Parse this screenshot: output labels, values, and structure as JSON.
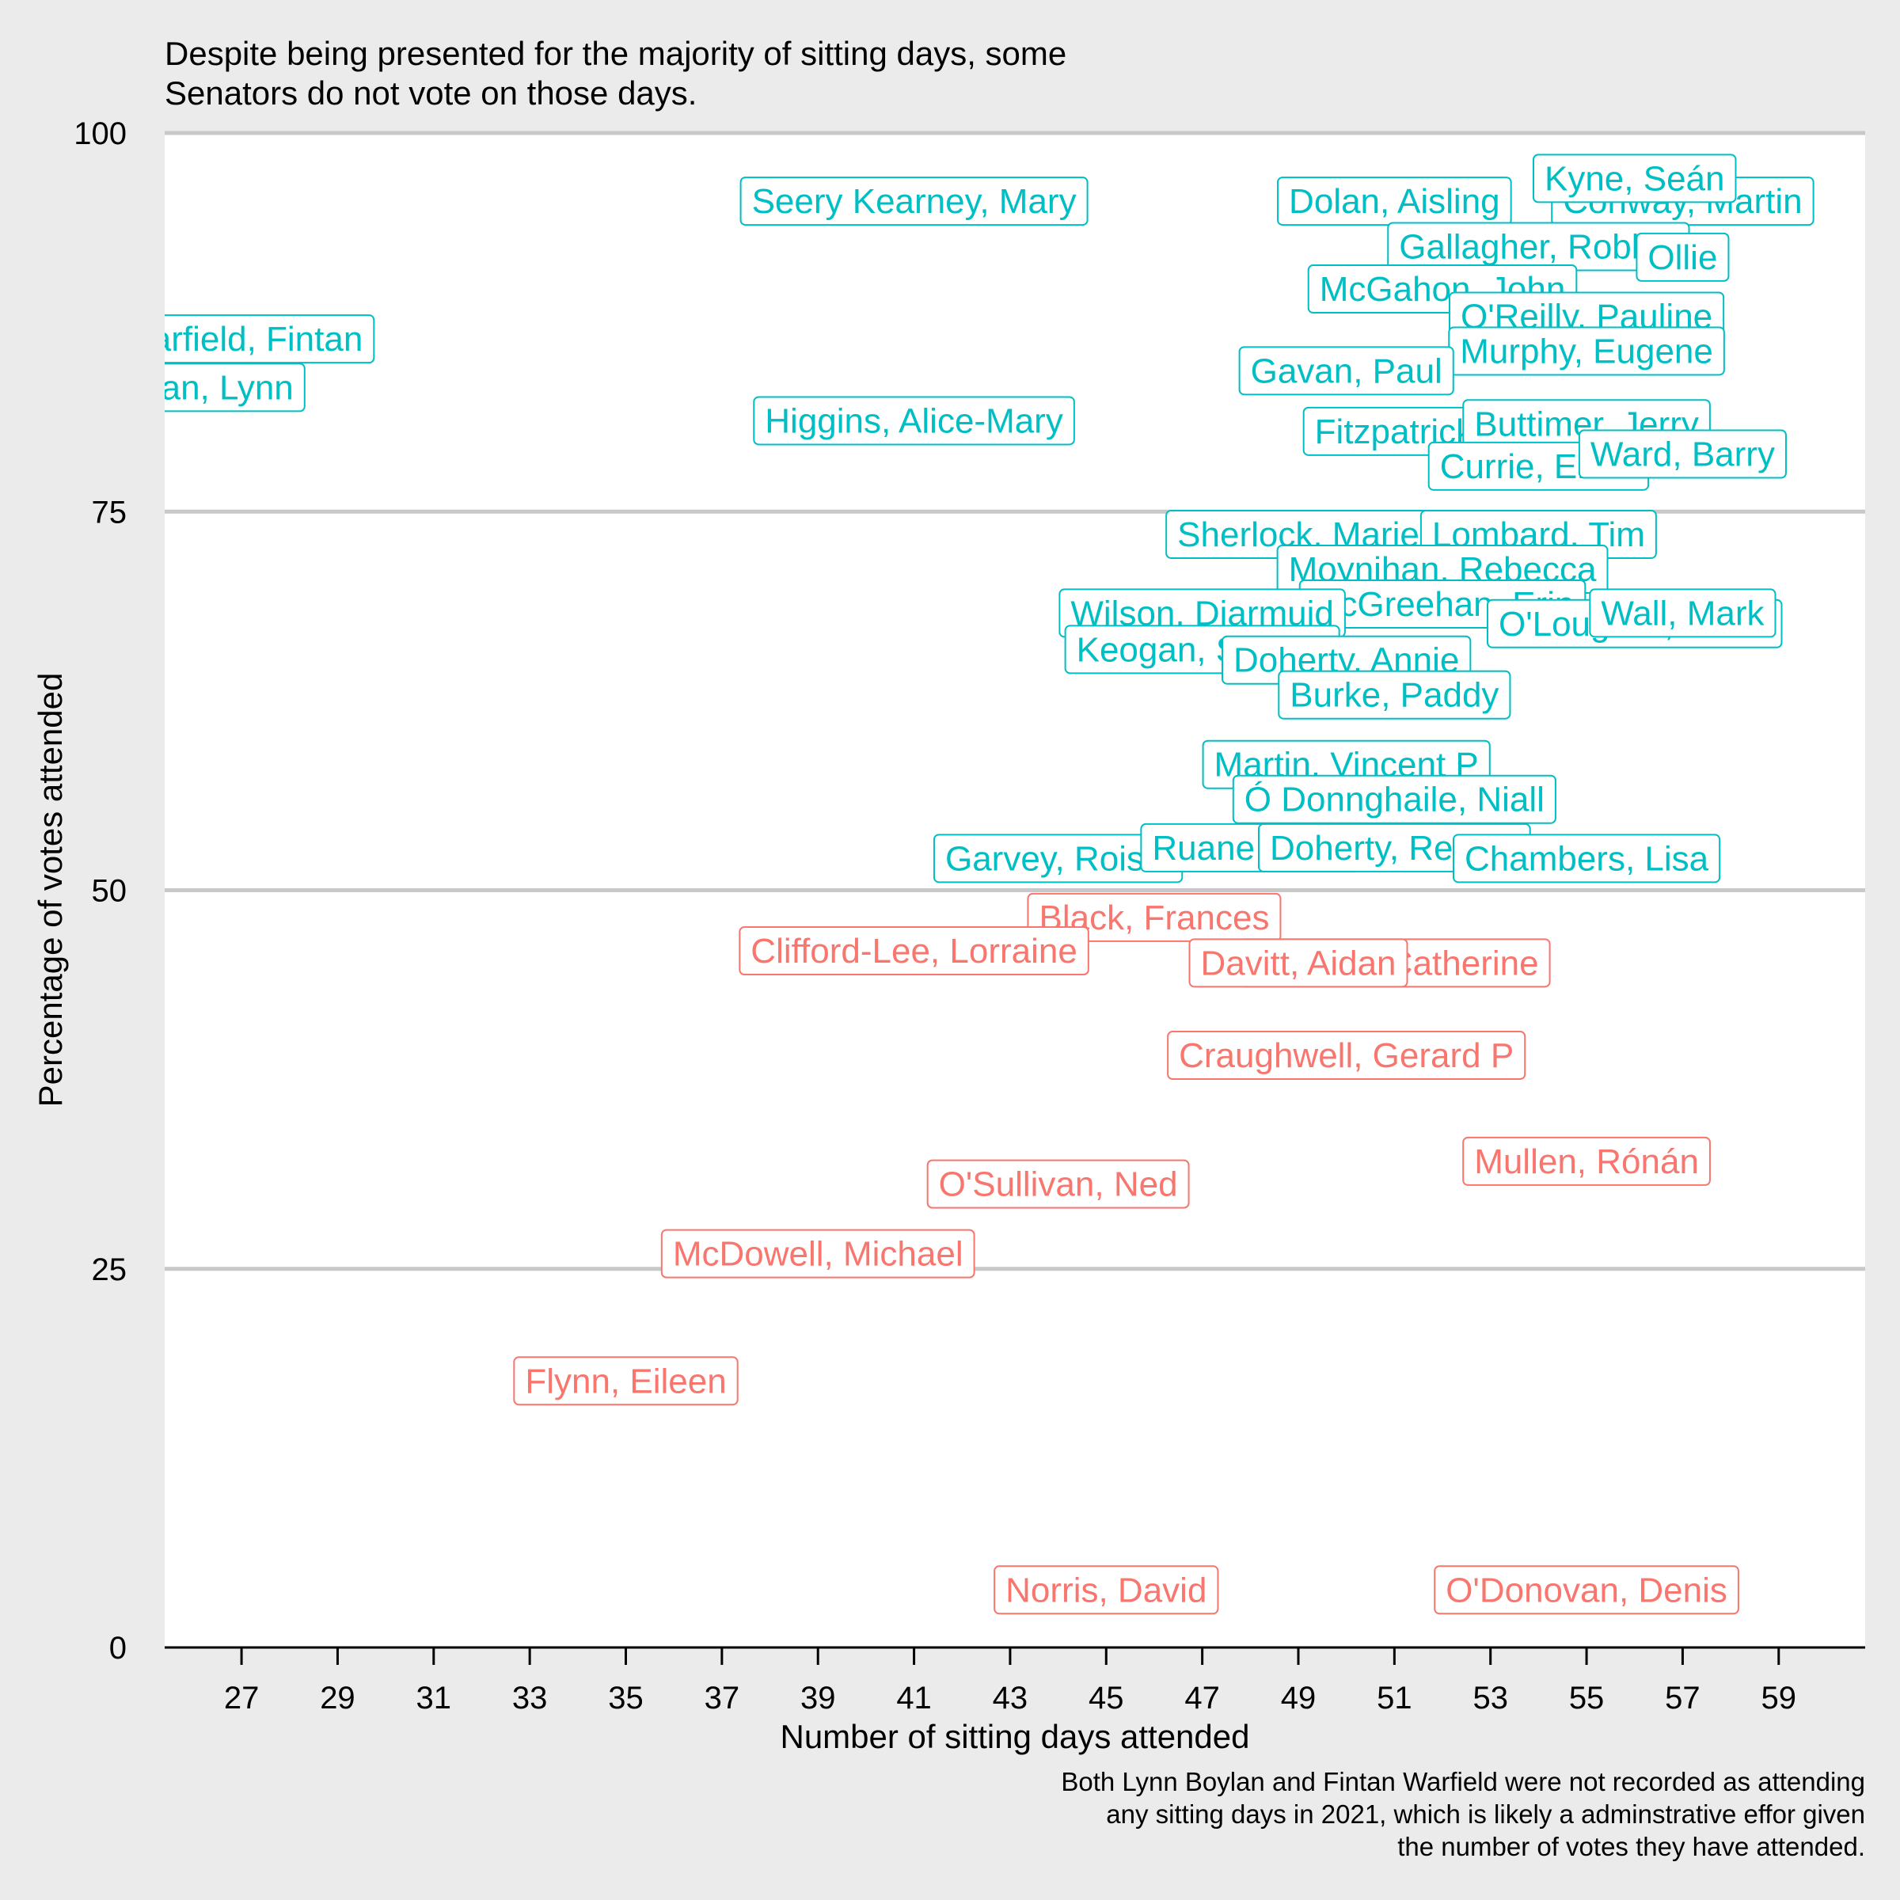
{
  "chart_data": {
    "type": "scatter",
    "title_lines": [
      "Despite being presented for the majority of sitting days, some",
      "Senators do not vote on those days."
    ],
    "xlabel": "Number of sitting days attended",
    "ylabel": "Percentage of votes attended",
    "caption_lines": [
      "Both Lynn Boylan and Fintan Warfield were not recorded as attending",
      "any sitting days in 2021, which is likely a adminstrative effor given",
      "the number of votes they have attended."
    ],
    "xlim": [
      25.4,
      60.8
    ],
    "ylim": [
      0,
      100
    ],
    "x_ticks": [
      27,
      29,
      31,
      33,
      35,
      37,
      39,
      41,
      43,
      45,
      47,
      49,
      51,
      53,
      55,
      57,
      59
    ],
    "y_ticks": [
      0,
      25,
      50,
      75,
      100
    ],
    "grid": "horizontal",
    "colors": {
      "above_50": "#00bfc4",
      "below_50": "#f8766d"
    },
    "points": [
      {
        "name": "Seery Kearney, Mary",
        "x": 41,
        "y": 95.5,
        "group": "above_50"
      },
      {
        "name": "Dolan, Aisling",
        "x": 51,
        "y": 95.5,
        "group": "above_50"
      },
      {
        "name": "Conway, Martin",
        "x": 57,
        "y": 95.5,
        "group": "above_50"
      },
      {
        "name": "Kyne, Seán",
        "x": 56,
        "y": 97,
        "group": "above_50"
      },
      {
        "name": "Gallagher, Robbie",
        "x": 54,
        "y": 92.5,
        "group": "above_50"
      },
      {
        "name": "Ollie",
        "x": 57,
        "y": 91.8,
        "group": "above_50"
      },
      {
        "name": "McGahon, John",
        "x": 52,
        "y": 89.7,
        "group": "above_50"
      },
      {
        "name": "O'Reilly, Pauline",
        "x": 55,
        "y": 87.9,
        "group": "above_50"
      },
      {
        "name": "Murphy, Eugene",
        "x": 55,
        "y": 85.6,
        "group": "above_50"
      },
      {
        "name": "Gavan, Paul",
        "x": 50,
        "y": 84.3,
        "group": "above_50"
      },
      {
        "name": "Warfield, Fintan",
        "x": 27,
        "y": 86.4,
        "group": "above_50"
      },
      {
        "name": "Boylan, Lynn",
        "x": 26,
        "y": 83.2,
        "group": "above_50"
      },
      {
        "name": "Higgins, Alice-Mary",
        "x": 41,
        "y": 81.0,
        "group": "above_50"
      },
      {
        "name": "Fitzpatrick, Mary",
        "x": 52,
        "y": 80.3,
        "group": "above_50"
      },
      {
        "name": "Buttimer, Jerry",
        "x": 55,
        "y": 80.8,
        "group": "above_50"
      },
      {
        "name": "Currie, Emer",
        "x": 54,
        "y": 78.0,
        "group": "above_50"
      },
      {
        "name": "Ward, Barry",
        "x": 57,
        "y": 78.8,
        "group": "above_50"
      },
      {
        "name": "Sherlock, Marie",
        "x": 49,
        "y": 73.5,
        "group": "above_50"
      },
      {
        "name": "Lombard, Tim",
        "x": 54,
        "y": 73.5,
        "group": "above_50"
      },
      {
        "name": "Moynihan, Rebecca",
        "x": 52,
        "y": 71.2,
        "group": "above_50"
      },
      {
        "name": "McGreehan, Erin",
        "x": 52,
        "y": 68.9,
        "group": "above_50"
      },
      {
        "name": "Wilson, Diarmuid",
        "x": 47,
        "y": 68.3,
        "group": "above_50"
      },
      {
        "name": "O'Loughlin, Fiona",
        "x": 56,
        "y": 67.6,
        "group": "above_50"
      },
      {
        "name": "Wall, Mark",
        "x": 57,
        "y": 68.3,
        "group": "above_50"
      },
      {
        "name": "Keogan, Sharon",
        "x": 47,
        "y": 65.9,
        "group": "above_50"
      },
      {
        "name": "Doherty, Annie",
        "x": 50,
        "y": 65.2,
        "group": "above_50"
      },
      {
        "name": "Burke, Paddy",
        "x": 51,
        "y": 62.9,
        "group": "above_50"
      },
      {
        "name": "Martin, Vincent P",
        "x": 50,
        "y": 58.3,
        "group": "above_50"
      },
      {
        "name": "Ó Donnghaile, Niall",
        "x": 51,
        "y": 56.0,
        "group": "above_50"
      },
      {
        "name": "Garvey, Roisin",
        "x": 44,
        "y": 52.1,
        "group": "above_50"
      },
      {
        "name": "Ruane, Lynn",
        "x": 48,
        "y": 52.8,
        "group": "above_50"
      },
      {
        "name": "Doherty, Regina",
        "x": 51,
        "y": 52.8,
        "group": "above_50"
      },
      {
        "name": "Chambers, Lisa",
        "x": 55,
        "y": 52.1,
        "group": "above_50"
      },
      {
        "name": "Black, Frances",
        "x": 46,
        "y": 48.2,
        "group": "below_50"
      },
      {
        "name": "Clifford-Lee, Lorraine",
        "x": 41,
        "y": 46.0,
        "group": "below_50"
      },
      {
        "name": "Boyhan, Catherine",
        "x": 51,
        "y": 45.2,
        "group": "below_50"
      },
      {
        "name": "Davitt, Aidan",
        "x": 49,
        "y": 45.2,
        "group": "below_50"
      },
      {
        "name": "Craughwell, Gerard P",
        "x": 50,
        "y": 39.1,
        "group": "below_50"
      },
      {
        "name": "Mullen, Rónán",
        "x": 55,
        "y": 32.1,
        "group": "below_50"
      },
      {
        "name": "O'Sullivan, Ned",
        "x": 44,
        "y": 30.6,
        "group": "below_50"
      },
      {
        "name": "McDowell, Michael",
        "x": 39,
        "y": 26.0,
        "group": "below_50"
      },
      {
        "name": "Flynn, Eileen",
        "x": 35,
        "y": 17.6,
        "group": "below_50"
      },
      {
        "name": "Norris, David",
        "x": 45,
        "y": 3.8,
        "group": "below_50"
      },
      {
        "name": "O'Donovan, Denis",
        "x": 55,
        "y": 3.8,
        "group": "below_50"
      }
    ]
  }
}
